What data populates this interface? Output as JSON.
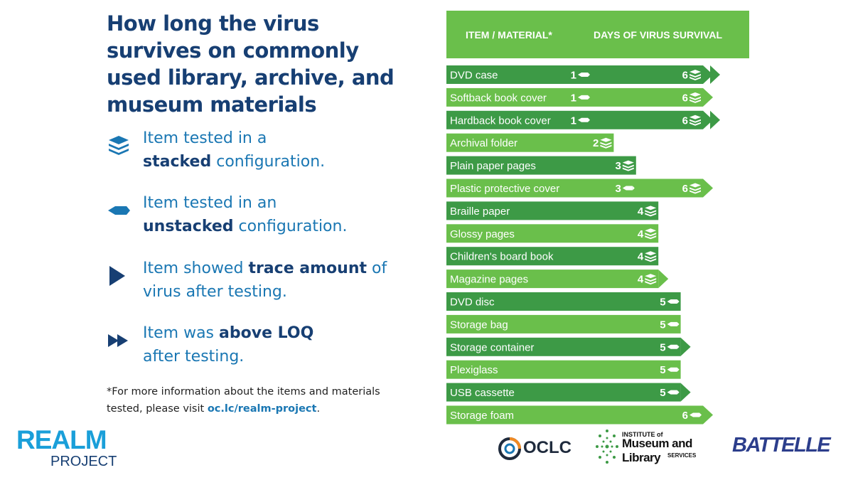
{
  "title": "How long the virus survives on commonly used library, archive, and museum materials",
  "legend": [
    {
      "icon": "stacked-icon",
      "before": "Item tested in a",
      "bold": "stacked",
      "after": "configuration."
    },
    {
      "icon": "unstacked-icon",
      "before": "Item tested in an",
      "bold": "unstacked",
      "after": "configuration."
    },
    {
      "icon": "trace-arrow-icon",
      "before": "Item showed",
      "bold": "trace amount",
      "after": "of virus after testing."
    },
    {
      "icon": "double-arrow-icon",
      "before": "Item was",
      "bold": "above LOQ",
      "after": "after testing."
    }
  ],
  "footnote": {
    "text": "*For more information about the items and materials tested, please visit",
    "link": "oc.lc/realm-project",
    "end": "."
  },
  "realm_logo": {
    "main": "REALM",
    "sub": "PROJECT"
  },
  "logos": {
    "oclc": "OCLC",
    "imls_top": "INSTITUTE of",
    "imls_main": "Museum and Library",
    "imls_sub": "SERVICES",
    "battelle": "BATTELLE"
  },
  "colors": {
    "title": "#173f73",
    "accent_blue": "#1a77b3",
    "header_green": "#6abf4b",
    "dark_green": "#3d9a46",
    "light_green": "#6abf4b"
  },
  "chart_data": {
    "type": "bar",
    "headers": [
      "ITEM / MATERIAL*",
      "DAYS OF VIRUS SURVIVAL"
    ],
    "rows": [
      {
        "label": "DVD case",
        "unstacked": 1,
        "stacked": 6,
        "end": "above-loq"
      },
      {
        "label": "Softback book cover",
        "unstacked": 1,
        "stacked": 6,
        "end": "trace"
      },
      {
        "label": "Hardback book cover",
        "unstacked": 1,
        "stacked": 6,
        "end": "above-loq"
      },
      {
        "label": "Archival folder",
        "unstacked": null,
        "stacked": 2,
        "end": "none"
      },
      {
        "label": "Plain paper pages",
        "unstacked": null,
        "stacked": 3,
        "end": "none"
      },
      {
        "label": "Plastic protective cover",
        "unstacked": 3,
        "stacked": 6,
        "end": "trace"
      },
      {
        "label": "Braille paper",
        "unstacked": null,
        "stacked": 4,
        "end": "none"
      },
      {
        "label": "Glossy pages",
        "unstacked": null,
        "stacked": 4,
        "end": "none"
      },
      {
        "label": "Children's board book",
        "unstacked": null,
        "stacked": 4,
        "end": "none"
      },
      {
        "label": "Magazine pages",
        "unstacked": null,
        "stacked": 4,
        "end": "trace"
      },
      {
        "label": "DVD disc",
        "unstacked": 5,
        "stacked": null,
        "end": "none"
      },
      {
        "label": "Storage bag",
        "unstacked": 5,
        "stacked": null,
        "end": "none"
      },
      {
        "label": "Storage container",
        "unstacked": 5,
        "stacked": null,
        "end": "trace"
      },
      {
        "label": "Plexiglass",
        "unstacked": 5,
        "stacked": null,
        "end": "none"
      },
      {
        "label": "USB cassette",
        "unstacked": 5,
        "stacked": null,
        "end": "trace"
      },
      {
        "label": "Storage foam",
        "unstacked": 6,
        "stacked": null,
        "end": "trace"
      }
    ]
  }
}
